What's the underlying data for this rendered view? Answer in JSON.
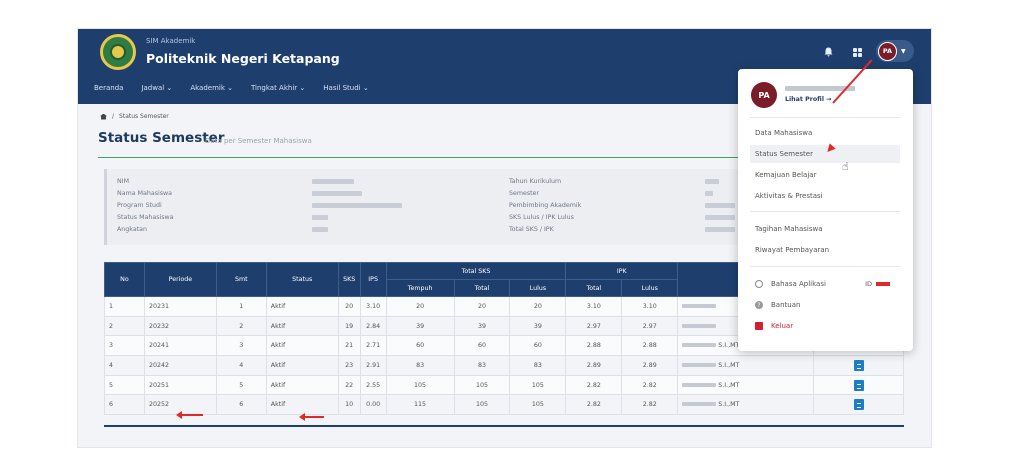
{
  "header": {
    "app_name": "SIM Akademik",
    "institution": "Politeknik Negeri Ketapang",
    "avatar_initials": "PA"
  },
  "nav": [
    "Beranda",
    "Jadwal ⌄",
    "Akademik ⌄",
    "Tingkat Akhir ⌄",
    "Hasil Studi ⌄"
  ],
  "breadcrumb": "Status Semester",
  "page": {
    "title": "Status Semester",
    "subtitle": "Data per Semester Mahasiswa"
  },
  "info": {
    "left_labels": [
      "NIM",
      "Nama Mahasiswa",
      "Program Studi",
      "Status Mahasiswa",
      "Angkatan"
    ],
    "right_labels": [
      "Tahun Kurikulum",
      "Semester",
      "Pembimbing Akademik",
      "SKS Lulus / IPK Lulus",
      "Total SKS / IPK"
    ]
  },
  "table": {
    "headers": {
      "no": "No",
      "periode": "Periode",
      "smt": "Smt",
      "status": "Status",
      "sks": "SKS",
      "ips": "IPS",
      "total_sks": "Total SKS",
      "ipk": "IPK",
      "tempuh": "Tempuh",
      "total": "Total",
      "lulus": "Lulus",
      "ipk_total": "Total",
      "ipk_lulus": "Lulus"
    },
    "rows": [
      {
        "no": "1",
        "periode": "20231",
        "smt": "1",
        "status": "Aktif",
        "sks": "20",
        "ips": "3.10",
        "tempuh": "20",
        "total": "20",
        "lulus": "20",
        "ipk_total": "3.10",
        "ipk_lulus": "3.10",
        "dosen": ""
      },
      {
        "no": "2",
        "periode": "20232",
        "smt": "2",
        "status": "Aktif",
        "sks": "19",
        "ips": "2.84",
        "tempuh": "39",
        "total": "39",
        "lulus": "39",
        "ipk_total": "2.97",
        "ipk_lulus": "2.97",
        "dosen": ""
      },
      {
        "no": "3",
        "periode": "20241",
        "smt": "3",
        "status": "Aktif",
        "sks": "21",
        "ips": "2.71",
        "tempuh": "60",
        "total": "60",
        "lulus": "60",
        "ipk_total": "2.88",
        "ipk_lulus": "2.88",
        "dosen": "S.I.,MT"
      },
      {
        "no": "4",
        "periode": "20242",
        "smt": "4",
        "status": "Aktif",
        "sks": "23",
        "ips": "2.91",
        "tempuh": "83",
        "total": "83",
        "lulus": "83",
        "ipk_total": "2.89",
        "ipk_lulus": "2.89",
        "dosen": "S.I.,MT"
      },
      {
        "no": "5",
        "periode": "20251",
        "smt": "5",
        "status": "Aktif",
        "sks": "22",
        "ips": "2.55",
        "tempuh": "105",
        "total": "105",
        "lulus": "105",
        "ipk_total": "2.82",
        "ipk_lulus": "2.82",
        "dosen": "S.I.,MT"
      },
      {
        "no": "6",
        "periode": "20252",
        "smt": "6",
        "status": "Aktif",
        "sks": "10",
        "ips": "0.00",
        "tempuh": "115",
        "total": "105",
        "lulus": "105",
        "ipk_total": "2.82",
        "ipk_lulus": "2.82",
        "dosen": "S.I.,MT"
      }
    ]
  },
  "dropdown": {
    "avatar_initials": "PA",
    "profile_link": "Lihat Profil →",
    "items_group1": [
      "Data Mahasiswa",
      "Status Semester",
      "Kemajuan Belajar",
      "Aktivitas & Prestasi"
    ],
    "items_group2": [
      "Tagihan Mahasiswa",
      "Riwayat Pembayaran"
    ],
    "language_label": "Bahasa Aplikasi",
    "language_code": "ID",
    "help_label": "Bantuan",
    "logout_label": "Keluar"
  },
  "colors": {
    "primary": "#1e3f6e",
    "accent_green": "#39a85a",
    "alert_red": "#e02a2a"
  }
}
